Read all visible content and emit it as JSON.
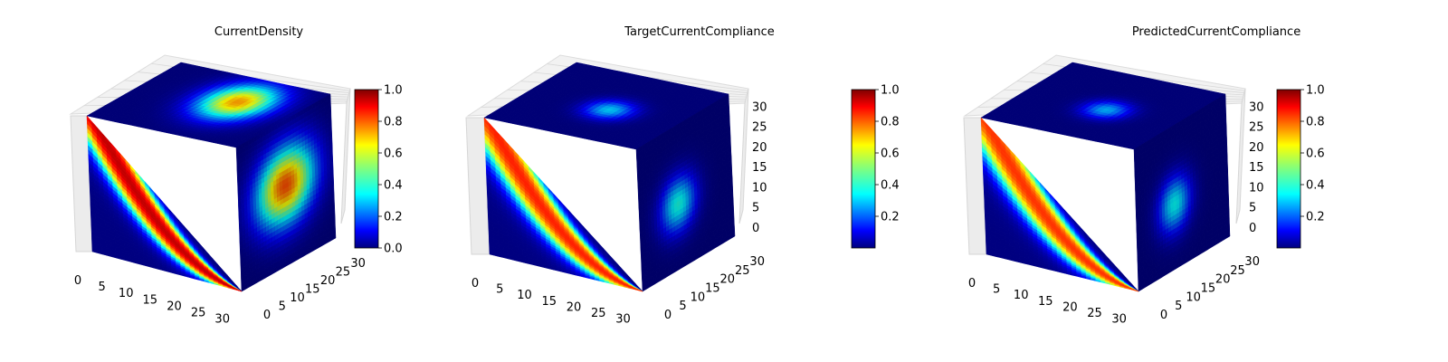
{
  "colormap": "jet",
  "chart_data": [
    {
      "type": "3d-voxel",
      "title": "CurrentDensity",
      "grid_size": 32,
      "x_ticks": [
        "0",
        "5",
        "10",
        "15",
        "20",
        "25",
        "30"
      ],
      "y_ticks": [
        "0",
        "5",
        "10",
        "15",
        "20",
        "25",
        "30"
      ],
      "z_ticks": [],
      "colorbar": {
        "ticks": [
          "0.0",
          "0.2",
          "0.4",
          "0.6",
          "0.8",
          "1.0"
        ],
        "tick_values": [
          0,
          0.2,
          0.4,
          0.6,
          0.8,
          1.0
        ],
        "range": [
          0,
          1
        ]
      },
      "front_face": {
        "band_a": 0.85,
        "band_b": 1.32,
        "soft": 0.07,
        "peak": 1.0
      },
      "top_face": {
        "cx": 0.62,
        "cy": 0.38,
        "rx": 0.26,
        "ry": 0.36,
        "peak": 0.72
      },
      "side_face": {
        "cx": 0.5,
        "cy": 0.45,
        "rx": 0.35,
        "ry": 0.3,
        "peak": 0.8
      }
    },
    {
      "type": "3d-voxel",
      "title": "TargetCurrentCompliance",
      "grid_size": 32,
      "x_ticks": [
        "0",
        "5",
        "10",
        "15",
        "20",
        "25",
        "30"
      ],
      "y_ticks": [
        "0",
        "5",
        "10",
        "15",
        "20",
        "25",
        "30"
      ],
      "z_ticks": [
        "0",
        "5",
        "10",
        "15",
        "20",
        "25",
        "30"
      ],
      "colorbar": {
        "ticks": [
          "0.2",
          "0.4",
          "0.6",
          "0.8",
          "1.0"
        ],
        "tick_values": [
          0.2,
          0.4,
          0.6,
          0.8,
          1.0
        ],
        "range": [
          0,
          1
        ]
      },
      "front_face": {
        "band_a": 0.8,
        "band_b": 1.3,
        "soft": 0.08,
        "peak": 0.92
      },
      "top_face": {
        "cx": 0.55,
        "cy": 0.55,
        "rx": 0.18,
        "ry": 0.18,
        "peak": 0.33
      },
      "side_face": {
        "cx": 0.42,
        "cy": 0.55,
        "rx": 0.22,
        "ry": 0.22,
        "peak": 0.4
      }
    },
    {
      "type": "3d-voxel",
      "title": "PredictedCurrentCompliance",
      "grid_size": 32,
      "x_ticks": [
        "0",
        "5",
        "10",
        "15",
        "20",
        "25",
        "30"
      ],
      "y_ticks": [
        "0",
        "5",
        "10",
        "15",
        "20",
        "25",
        "30"
      ],
      "z_ticks": [
        "0",
        "5",
        "10",
        "15",
        "20",
        "25",
        "30"
      ],
      "colorbar": {
        "ticks": [
          "0.2",
          "0.4",
          "0.6",
          "0.8",
          "1.0"
        ],
        "tick_values": [
          0.2,
          0.4,
          0.6,
          0.8,
          1.0
        ],
        "range": [
          0,
          1
        ]
      },
      "front_face": {
        "band_a": 0.8,
        "band_b": 1.3,
        "soft": 0.08,
        "peak": 0.9
      },
      "top_face": {
        "cx": 0.55,
        "cy": 0.55,
        "rx": 0.17,
        "ry": 0.17,
        "peak": 0.3
      },
      "side_face": {
        "cx": 0.42,
        "cy": 0.55,
        "rx": 0.2,
        "ry": 0.22,
        "peak": 0.38
      }
    }
  ]
}
